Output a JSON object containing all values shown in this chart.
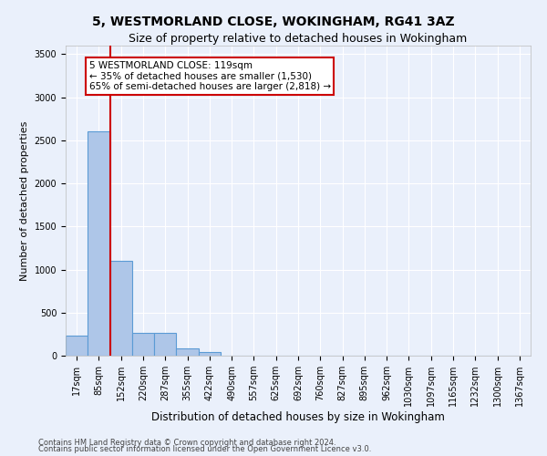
{
  "title1": "5, WESTMORLAND CLOSE, WOKINGHAM, RG41 3AZ",
  "title2": "Size of property relative to detached houses in Wokingham",
  "xlabel": "Distribution of detached houses by size in Wokingham",
  "ylabel": "Number of detached properties",
  "categories": [
    "17sqm",
    "85sqm",
    "152sqm",
    "220sqm",
    "287sqm",
    "355sqm",
    "422sqm",
    "490sqm",
    "557sqm",
    "625sqm",
    "692sqm",
    "760sqm",
    "827sqm",
    "895sqm",
    "962sqm",
    "1030sqm",
    "1097sqm",
    "1165sqm",
    "1232sqm",
    "1300sqm",
    "1367sqm"
  ],
  "values": [
    230,
    2600,
    1100,
    270,
    270,
    90,
    45,
    0,
    0,
    0,
    0,
    0,
    0,
    0,
    0,
    0,
    0,
    0,
    0,
    0,
    0
  ],
  "bar_color": "#aec6e8",
  "bar_edge_color": "#5b9bd5",
  "vline_color": "#cc0000",
  "annotation_text": "5 WESTMORLAND CLOSE: 119sqm\n← 35% of detached houses are smaller (1,530)\n65% of semi-detached houses are larger (2,818) →",
  "annotation_box_color": "#ffffff",
  "annotation_border_color": "#cc0000",
  "ylim": [
    0,
    3600
  ],
  "yticks": [
    0,
    500,
    1000,
    1500,
    2000,
    2500,
    3000,
    3500
  ],
  "footer1": "Contains HM Land Registry data © Crown copyright and database right 2024.",
  "footer2": "Contains public sector information licensed under the Open Government Licence v3.0.",
  "background_color": "#eaf0fb",
  "plot_bg_color": "#eaf0fb",
  "grid_color": "#ffffff",
  "title1_fontsize": 10,
  "title2_fontsize": 9,
  "tick_fontsize": 7,
  "ylabel_fontsize": 8,
  "xlabel_fontsize": 8.5,
  "footer_fontsize": 6,
  "annotation_fontsize": 7.5
}
